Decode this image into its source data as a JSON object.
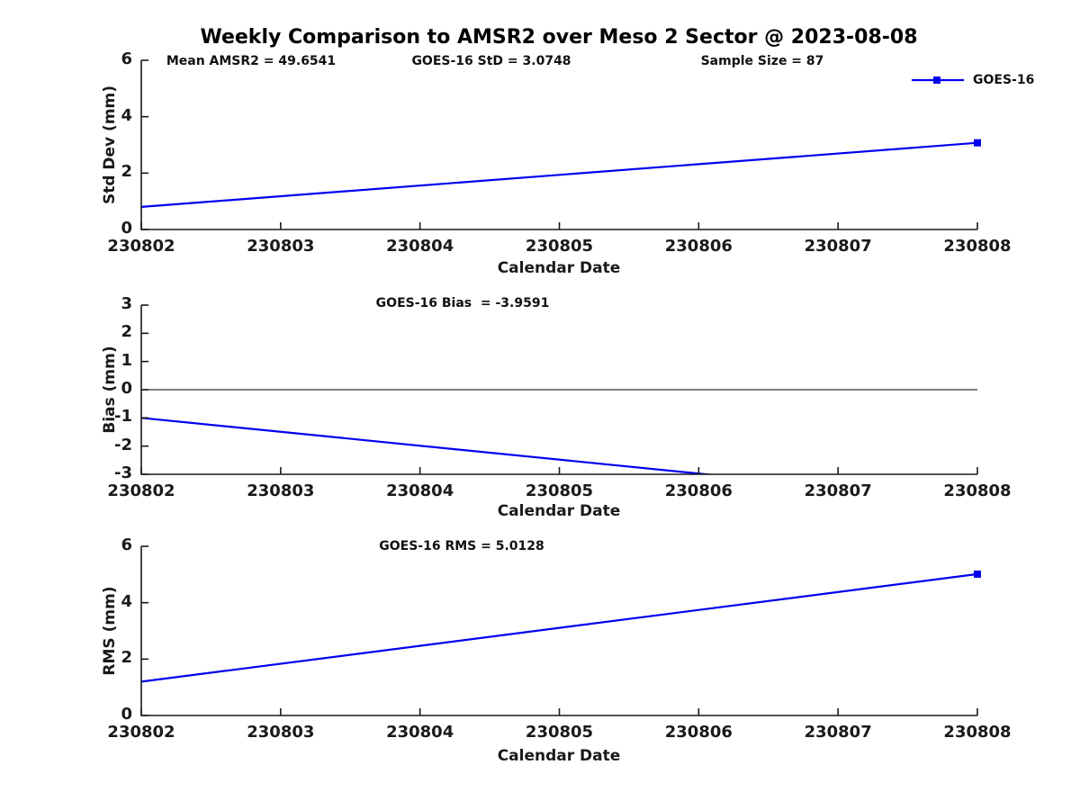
{
  "title": "Weekly Comparison to AMSR2 over Meso 2 Sector @ 2023-08-08",
  "colors": {
    "series_line": "#0000EE",
    "axis": "#1a1a1a",
    "zero_line": "#333333"
  },
  "legend": {
    "label": "GOES-16",
    "marker": "square"
  },
  "x_axis": {
    "label": "Calendar Date",
    "tick_labels": [
      "230802",
      "230803",
      "230804",
      "230805",
      "230806",
      "230807",
      "230808"
    ],
    "xlim": [
      230802,
      230808
    ]
  },
  "chart_data": [
    {
      "type": "line",
      "name": "std-dev",
      "ylabel": "Std Dev (mm)",
      "ylim": [
        0,
        6
      ],
      "yticks": [
        0,
        2,
        4,
        6
      ],
      "zero_line": false,
      "annotations": [
        {
          "text": "Mean AMSR2 = 49.6541"
        },
        {
          "text": "GOES-16 StD = 3.0748"
        },
        {
          "text": "Sample Size = 87"
        }
      ],
      "series": [
        {
          "name": "GOES-16",
          "points": [
            [
              230802,
              0.8
            ],
            [
              230808,
              3.0748
            ]
          ],
          "end_marker": true
        }
      ]
    },
    {
      "type": "line",
      "name": "bias",
      "ylabel": "Bias (mm)",
      "ylim": [
        -3,
        3
      ],
      "yticks": [
        -3,
        -2,
        -1,
        0,
        1,
        2,
        3
      ],
      "zero_line": true,
      "annotations": [
        {
          "text": "GOES-16 Bias  = -3.9591"
        }
      ],
      "series": [
        {
          "name": "GOES-16",
          "points": [
            [
              230802,
              -1.0
            ],
            [
              230808,
              -3.9591
            ]
          ],
          "end_marker": true
        }
      ]
    },
    {
      "type": "line",
      "name": "rms",
      "ylabel": "RMS (mm)",
      "ylim": [
        0,
        6
      ],
      "yticks": [
        0,
        2,
        4,
        6
      ],
      "zero_line": false,
      "annotations": [
        {
          "text": "GOES-16 RMS = 5.0128"
        }
      ],
      "series": [
        {
          "name": "GOES-16",
          "points": [
            [
              230802,
              1.2
            ],
            [
              230808,
              5.0128
            ]
          ],
          "end_marker": true
        }
      ]
    }
  ]
}
